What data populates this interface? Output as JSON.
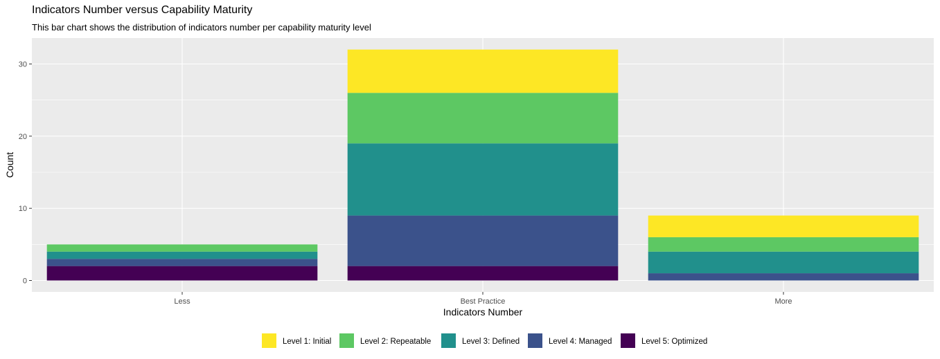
{
  "chart_data": {
    "type": "bar",
    "stacked": true,
    "title": "Indicators Number versus Capability Maturity",
    "subtitle": "This bar chart shows the distribution of indicators number per capability maturity level",
    "xlabel": "Indicators Number",
    "ylabel": "Count",
    "categories": [
      "Less",
      "Best Practice",
      "More"
    ],
    "ylim": [
      0,
      32
    ],
    "yticks": [
      0,
      10,
      20,
      30
    ],
    "grid": true,
    "legend_position": "bottom",
    "series": [
      {
        "name": "Level 1: Initial",
        "color": "#FDE725",
        "values": [
          0,
          6,
          3
        ]
      },
      {
        "name": "Level 2: Repeatable",
        "color": "#5DC863",
        "values": [
          1,
          7,
          2
        ]
      },
      {
        "name": "Level 3: Defined",
        "color": "#21908C",
        "values": [
          1,
          10,
          3
        ]
      },
      {
        "name": "Level 4: Managed",
        "color": "#3B528B",
        "values": [
          1,
          7,
          1
        ]
      },
      {
        "name": "Level 5: Optimized",
        "color": "#440154",
        "values": [
          2,
          2,
          0
        ]
      }
    ]
  }
}
